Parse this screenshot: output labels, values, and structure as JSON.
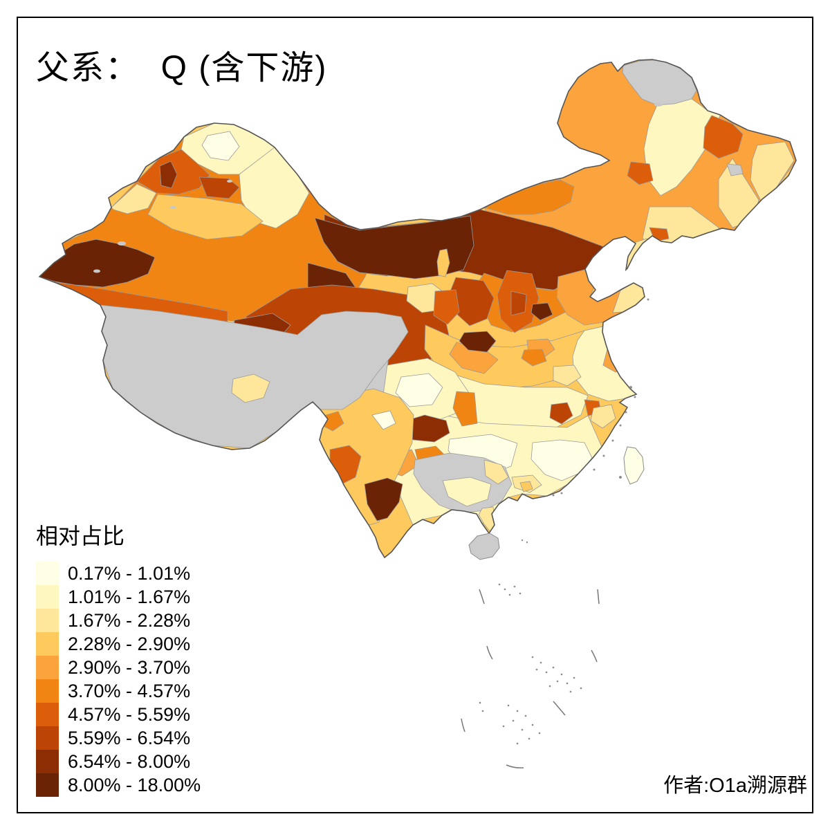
{
  "title": "父系：  Q (含下游)",
  "legend": {
    "title": "相对占比"
  },
  "legend_classes": [
    {
      "range": "0.17% - 1.01%",
      "color": "#FFFFE5"
    },
    {
      "range": "1.01% - 1.67%",
      "color": "#FFF7C0"
    },
    {
      "range": "1.67% - 2.28%",
      "color": "#FEE79A"
    },
    {
      "range": "2.28% - 2.90%",
      "color": "#FEC95D"
    },
    {
      "range": "2.90% - 3.70%",
      "color": "#FBA33D"
    },
    {
      "range": "3.70% - 4.57%",
      "color": "#F08514"
    },
    {
      "range": "4.57% - 5.59%",
      "color": "#DC5E0B"
    },
    {
      "range": "5.59% - 6.54%",
      "color": "#BC4506"
    },
    {
      "range": "6.54% - 8.00%",
      "color": "#8C2D04"
    },
    {
      "range": "8.00% - 18.00%",
      "color": "#6B2306"
    }
  ],
  "attribution": "作者:O1a溯源群",
  "palette": {
    "c1": "#FFFFE5",
    "c2": "#FFF7C0",
    "c3": "#FEE79A",
    "c4": "#FEC95D",
    "c5": "#FBA33D",
    "c6": "#F08514",
    "c7": "#DC5E0B",
    "c8": "#BC4506",
    "c9": "#8C2D04",
    "c10": "#6B2306",
    "nodata": "#CCCCCC",
    "lake": "#C8C8C8",
    "sea": "#FFFFFF",
    "boundary": "#9A9A9A",
    "outline": "#555555",
    "frame": "#000000"
  },
  "chart_data": {
    "type": "choropleth_map",
    "title": "父系：  Q (含下游)",
    "legend_title": "相对占比",
    "classes": [
      {
        "min": 0.17,
        "max": 1.01,
        "label": "0.17% - 1.01%"
      },
      {
        "min": 1.01,
        "max": 1.67,
        "label": "1.01% - 1.67%"
      },
      {
        "min": 1.67,
        "max": 2.28,
        "label": "1.67% - 2.28%"
      },
      {
        "min": 2.28,
        "max": 2.9,
        "label": "2.28% - 2.90%"
      },
      {
        "min": 2.9,
        "max": 3.7,
        "label": "2.90% - 3.70%"
      },
      {
        "min": 3.7,
        "max": 4.57,
        "label": "3.70% - 4.57%"
      },
      {
        "min": 4.57,
        "max": 5.59,
        "label": "4.57% - 5.59%"
      },
      {
        "min": 5.59,
        "max": 6.54,
        "label": "5.59% - 6.54%"
      },
      {
        "min": 6.54,
        "max": 8.0,
        "label": "6.54% - 8.00%"
      },
      {
        "min": 8.0,
        "max": 18.0,
        "label": "8.00% - 18.00%"
      }
    ],
    "legend_position": "bottom-left",
    "annotation": "作者:O1a溯源群"
  }
}
